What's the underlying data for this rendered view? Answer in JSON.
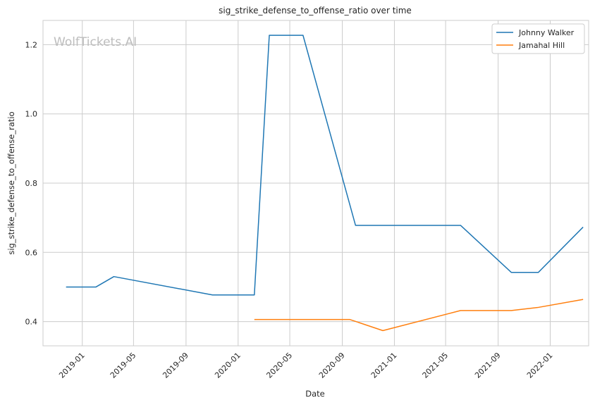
{
  "chart_data": {
    "type": "line",
    "title": "sig_strike_defense_to_offense_ratio over time",
    "xlabel": "Date",
    "ylabel": "sig_strike_defense_to_offense_ratio",
    "watermark": "WolfTickets.AI",
    "xlim": [
      "2018-10-01",
      "2022-04-01"
    ],
    "ylim": [
      0.33,
      1.27
    ],
    "x_ticks": [
      "2019-01",
      "2019-05",
      "2019-09",
      "2020-01",
      "2020-05",
      "2020-09",
      "2021-01",
      "2021-05",
      "2021-09",
      "2022-01"
    ],
    "y_ticks": [
      "0.4",
      "0.6",
      "0.8",
      "1.0",
      "1.2"
    ],
    "grid": true,
    "legend_position": "top-right",
    "series": [
      {
        "name": "Johnny Walker",
        "color": "#1f77b4",
        "points": [
          {
            "x": "2018-11-24",
            "y": 0.5
          },
          {
            "x": "2019-02-02",
            "y": 0.5
          },
          {
            "x": "2019-03-16",
            "y": 0.53
          },
          {
            "x": "2019-11-02",
            "y": 0.477
          },
          {
            "x": "2020-02-08",
            "y": 0.477
          },
          {
            "x": "2020-03-14",
            "y": 1.227
          },
          {
            "x": "2020-06-01",
            "y": 1.227
          },
          {
            "x": "2020-10-02",
            "y": 0.678
          },
          {
            "x": "2021-06-05",
            "y": 0.678
          },
          {
            "x": "2021-10-02",
            "y": 0.542
          },
          {
            "x": "2021-12-04",
            "y": 0.542
          },
          {
            "x": "2022-03-19",
            "y": 0.673
          }
        ]
      },
      {
        "name": "Jamahal Hill",
        "color": "#ff7f0e",
        "points": [
          {
            "x": "2020-02-08",
            "y": 0.406
          },
          {
            "x": "2020-09-19",
            "y": 0.406
          },
          {
            "x": "2020-12-05",
            "y": 0.374
          },
          {
            "x": "2021-06-05",
            "y": 0.432
          },
          {
            "x": "2021-10-02",
            "y": 0.432
          },
          {
            "x": "2021-12-04",
            "y": 0.441
          },
          {
            "x": "2022-03-19",
            "y": 0.464
          }
        ]
      }
    ]
  }
}
